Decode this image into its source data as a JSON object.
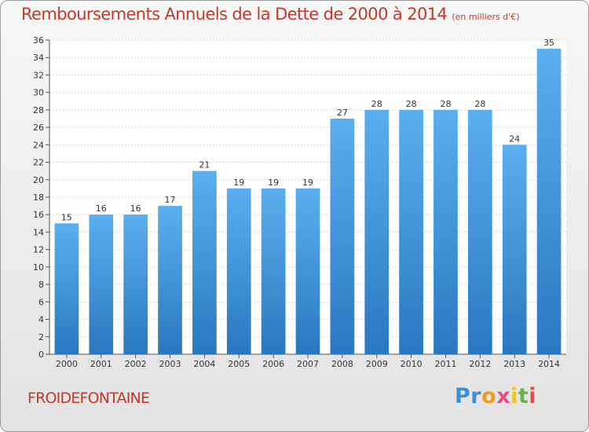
{
  "chart_data": {
    "type": "bar",
    "title": "Remboursements Annuels de la Dette de 2000 à 2014",
    "subtitle": "(en milliers d'€)",
    "categories": [
      "2000",
      "2001",
      "2002",
      "2003",
      "2004",
      "2005",
      "2006",
      "2007",
      "2008",
      "2009",
      "2010",
      "2011",
      "2012",
      "2013",
      "2014"
    ],
    "values": [
      15,
      16,
      16,
      17,
      21,
      19,
      19,
      19,
      27,
      28,
      28,
      28,
      28,
      24,
      35
    ],
    "ylim": [
      0,
      36
    ],
    "yticks": [
      0,
      2,
      4,
      6,
      8,
      10,
      12,
      14,
      16,
      18,
      20,
      22,
      24,
      26,
      28,
      30,
      32,
      34,
      36
    ],
    "xlabel": "",
    "ylabel": "",
    "grid": true,
    "bar_color": "#4a9fe0"
  },
  "commune": "FROIDEFONTAINE",
  "logo": {
    "letters": [
      "P",
      "r",
      "o",
      "x",
      "i",
      "t",
      "i"
    ],
    "colors": [
      "#3a8fd6",
      "#3a8fd6",
      "#f29a1f",
      "#e84a8a",
      "#f2c21f",
      "#6ab043",
      "#e84a4a"
    ]
  }
}
